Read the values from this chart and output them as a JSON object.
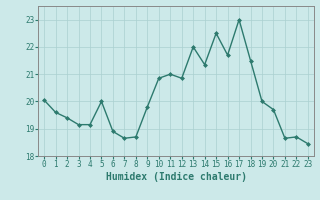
{
  "x": [
    0,
    1,
    2,
    3,
    4,
    5,
    6,
    7,
    8,
    9,
    10,
    11,
    12,
    13,
    14,
    15,
    16,
    17,
    18,
    19,
    20,
    21,
    22,
    23
  ],
  "y": [
    20.05,
    19.6,
    19.4,
    19.15,
    19.15,
    20.0,
    18.9,
    18.65,
    18.7,
    19.8,
    20.85,
    21.0,
    20.85,
    22.0,
    21.35,
    22.5,
    21.7,
    23.0,
    21.5,
    20.0,
    19.7,
    18.65,
    18.7,
    18.45
  ],
  "line_color": "#2d7a6e",
  "marker": "D",
  "marker_size": 2.0,
  "bg_color": "#cce9e9",
  "grid_color": "#aad0d0",
  "xlabel": "Humidex (Indice chaleur)",
  "ylabel": "",
  "xlim": [
    -0.5,
    23.5
  ],
  "ylim": [
    18,
    23.5
  ],
  "yticks": [
    18,
    19,
    20,
    21,
    22,
    23
  ],
  "xticks": [
    0,
    1,
    2,
    3,
    4,
    5,
    6,
    7,
    8,
    9,
    10,
    11,
    12,
    13,
    14,
    15,
    16,
    17,
    18,
    19,
    20,
    21,
    22,
    23
  ],
  "tick_color": "#2d7a6e",
  "tick_fontsize": 5.5,
  "xlabel_fontsize": 7.0,
  "line_width": 1.0
}
